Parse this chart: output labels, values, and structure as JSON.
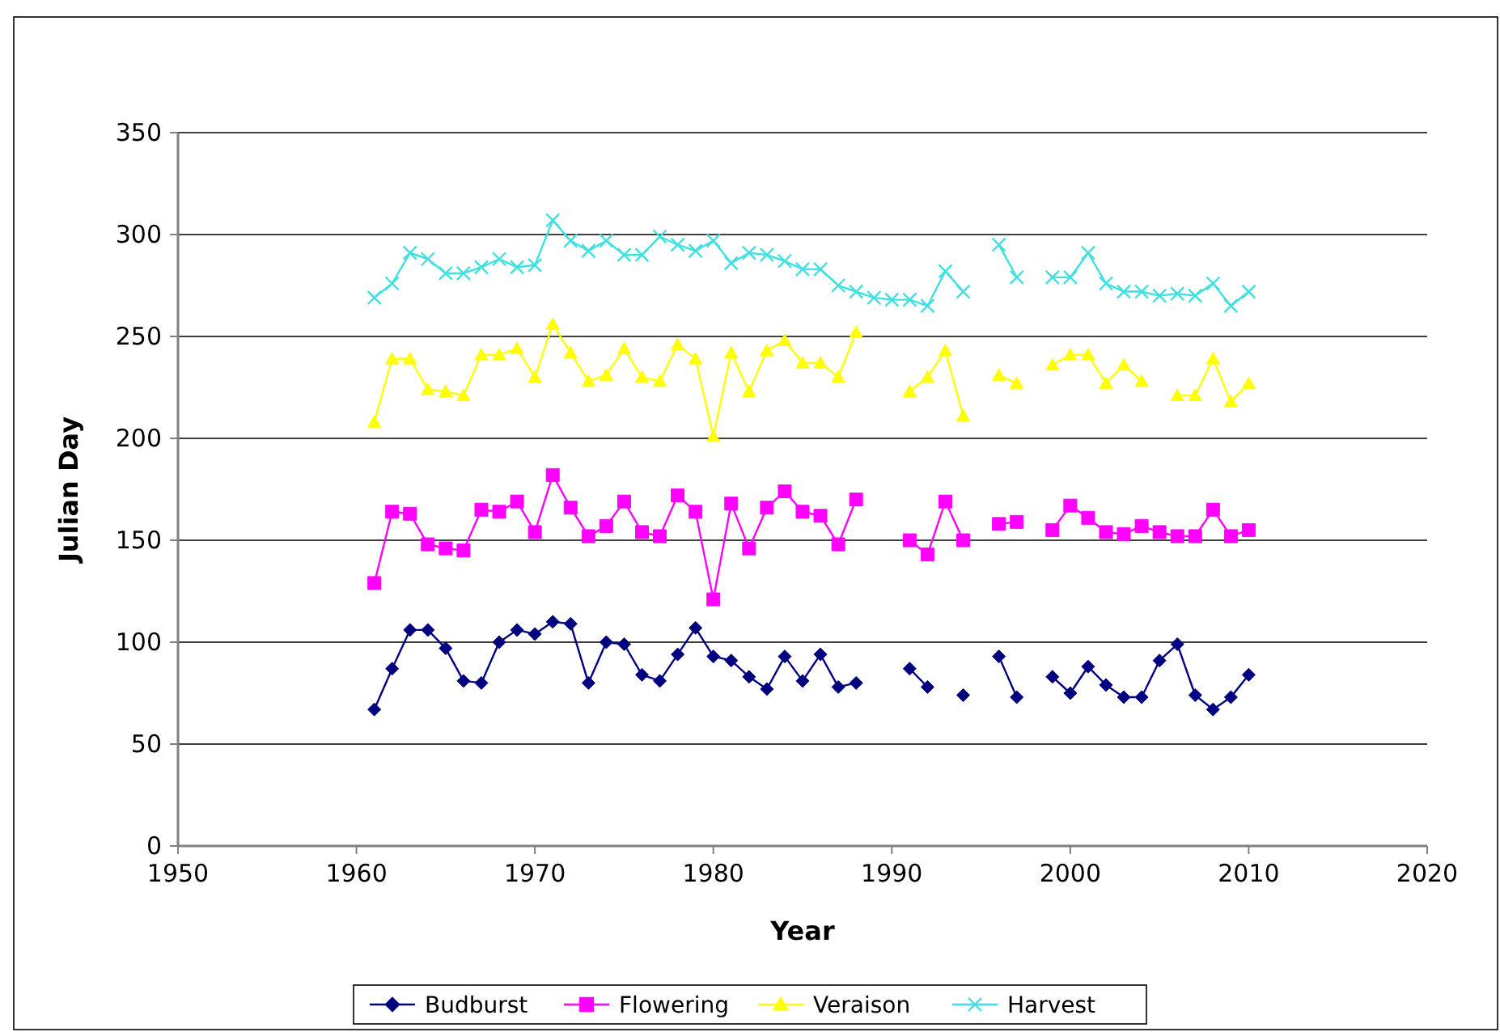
{
  "chart_data": {
    "type": "line",
    "xlabel": "Year",
    "ylabel": "Julian Day",
    "x": [
      1961,
      1962,
      1963,
      1964,
      1965,
      1966,
      1967,
      1968,
      1969,
      1970,
      1971,
      1972,
      1973,
      1974,
      1975,
      1976,
      1977,
      1978,
      1979,
      1980,
      1981,
      1982,
      1983,
      1984,
      1985,
      1986,
      1987,
      1988,
      1989,
      1990,
      1991,
      1992,
      1993,
      1994,
      1995,
      1996,
      1997,
      1998,
      1999,
      2000,
      2001,
      2002,
      2003,
      2004,
      2005,
      2006,
      2007,
      2008,
      2009,
      2010
    ],
    "series": [
      {
        "name": "Budburst",
        "color": "#000080",
        "marker": "diamond",
        "values": [
          67,
          87,
          106,
          106,
          97,
          81,
          80,
          100,
          106,
          104,
          110,
          109,
          80,
          100,
          99,
          84,
          81,
          94,
          107,
          93,
          91,
          83,
          77,
          93,
          81,
          94,
          78,
          80,
          null,
          null,
          87,
          78,
          null,
          74,
          null,
          93,
          73,
          null,
          83,
          75,
          88,
          79,
          73,
          73,
          91,
          99,
          74,
          67,
          73,
          84
        ]
      },
      {
        "name": "Flowering",
        "color": "#ff00ff",
        "marker": "square",
        "values": [
          129,
          164,
          163,
          148,
          146,
          145,
          165,
          164,
          169,
          154,
          182,
          166,
          152,
          157,
          169,
          154,
          152,
          172,
          164,
          121,
          168,
          146,
          166,
          174,
          164,
          162,
          148,
          170,
          null,
          null,
          150,
          143,
          169,
          150,
          null,
          158,
          159,
          null,
          155,
          167,
          161,
          154,
          153,
          157,
          154,
          152,
          152,
          165,
          152,
          155
        ]
      },
      {
        "name": "Veraison",
        "color": "#ffff00",
        "marker": "triangle",
        "values": [
          208,
          239,
          239,
          224,
          223,
          221,
          241,
          241,
          244,
          230,
          256,
          242,
          228,
          231,
          244,
          230,
          228,
          246,
          239,
          201,
          242,
          223,
          243,
          248,
          237,
          237,
          230,
          252,
          null,
          null,
          223,
          230,
          243,
          211,
          null,
          231,
          227,
          null,
          236,
          241,
          241,
          227,
          236,
          228,
          null,
          221,
          221,
          239,
          218,
          227
        ]
      },
      {
        "name": "Harvest",
        "color": "#40e0e0",
        "marker": "cross",
        "values": [
          269,
          276,
          291,
          288,
          281,
          281,
          284,
          288,
          284,
          285,
          307,
          297,
          292,
          297,
          290,
          290,
          299,
          295,
          292,
          297,
          286,
          291,
          290,
          287,
          283,
          283,
          275,
          272,
          269,
          268,
          268,
          265,
          282,
          272,
          null,
          295,
          279,
          null,
          279,
          279,
          291,
          276,
          272,
          272,
          270,
          271,
          270,
          276,
          265,
          272
        ]
      }
    ],
    "xlim": [
      1950,
      2020
    ],
    "xticks": [
      1950,
      1960,
      1970,
      1980,
      1990,
      2000,
      2010,
      2020
    ],
    "ylim": [
      0,
      350
    ],
    "yticks": [
      0,
      50,
      100,
      150,
      200,
      250,
      300,
      350
    ],
    "grid": "y",
    "legend": "bottom",
    "line_style": "solid"
  }
}
